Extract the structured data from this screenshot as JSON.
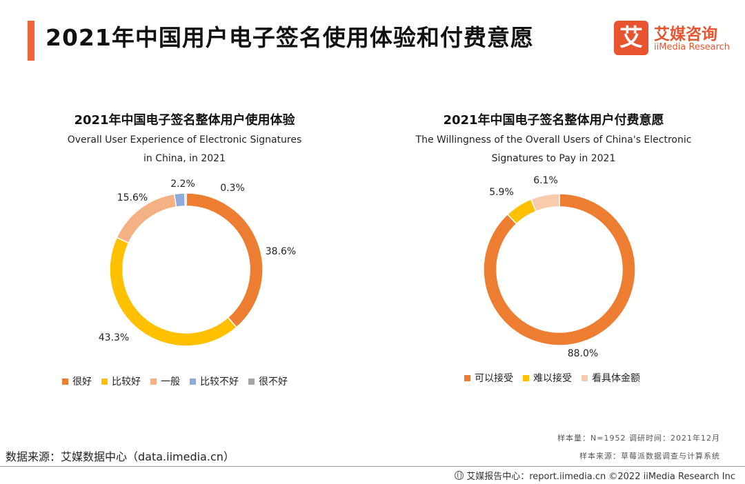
{
  "header": {
    "title": "2021年中国用户电子签名使用体验和付费意愿",
    "accent_color": "#f0663a"
  },
  "logo": {
    "mark_char": "艾",
    "name_cn": "艾媒咨询",
    "name_en": "iiMedia Research"
  },
  "chart_data": [
    {
      "type": "pie",
      "style": "donut",
      "title": "2021年中国电子签名整体用户使用体验",
      "subtitle_lines": [
        "Overall User Experience of Electronic Signatures",
        "in China, in 2021"
      ],
      "categories": [
        "很好",
        "比较好",
        "一般",
        "比较不好",
        "很不好"
      ],
      "values": [
        38.6,
        43.3,
        15.6,
        2.2,
        0.3
      ],
      "value_labels": [
        "38.6%",
        "43.3%",
        "15.6%",
        "2.2%",
        "0.3%"
      ],
      "colors": [
        "#ed7d31",
        "#ffc000",
        "#f4b183",
        "#8faadc",
        "#a5a5a5"
      ],
      "legend_position": "bottom"
    },
    {
      "type": "pie",
      "style": "donut",
      "title": "2021年中国电子签名整体用户付费意愿",
      "subtitle_lines": [
        "The Willingness of the Overall Users of China's Electronic",
        "Signatures to Pay in 2021"
      ],
      "categories": [
        "可以接受",
        "难以接受",
        "看具体金额"
      ],
      "values": [
        88.0,
        5.9,
        6.1
      ],
      "value_labels": [
        "88.0%",
        "5.9%",
        "6.1%"
      ],
      "colors": [
        "#ed7d31",
        "#ffc000",
        "#f8cbad"
      ],
      "legend_position": "bottom"
    }
  ],
  "meta": {
    "sample": "样本量：N=1952  调研时间：2021年12月",
    "sample_source": "样本来源：草莓派数据调查与计算系统"
  },
  "source": "数据来源：艾媒数据中心（data.iimedia.cn）",
  "footer": {
    "report": "艾媒报告中心：report.iimedia.cn  ©2022  iiMedia Research  Inc"
  }
}
